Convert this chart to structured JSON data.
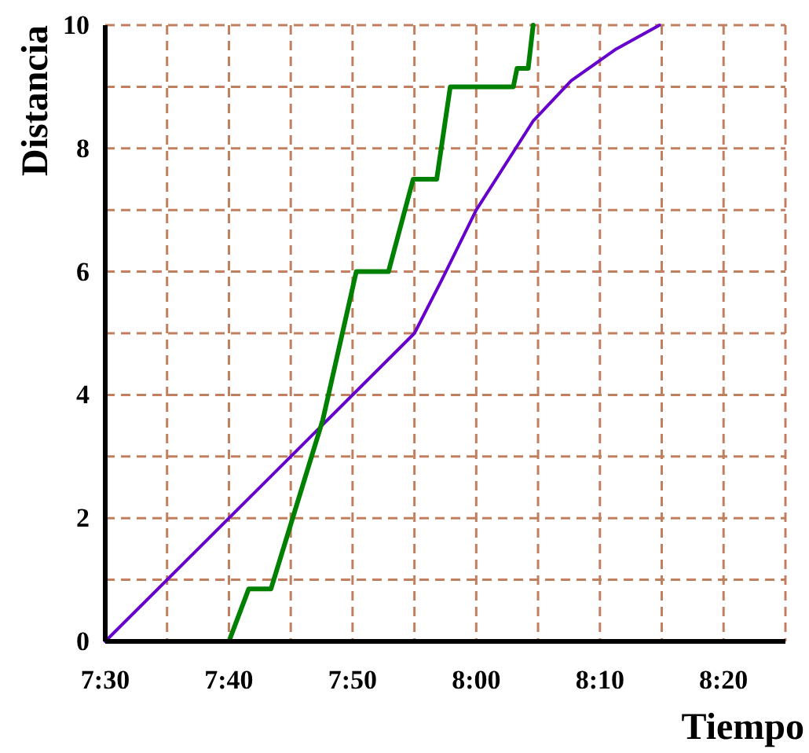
{
  "chart_data": {
    "type": "line",
    "xlabel": "Tiempo",
    "ylabel": "Distancia",
    "xlim": [
      7.5,
      8.4167
    ],
    "xticks": [
      {
        "value": 7.5,
        "label": "7:30"
      },
      {
        "value": 7.5833,
        "label": null
      },
      {
        "value": 7.6667,
        "label": "7:40"
      },
      {
        "value": 7.75,
        "label": null
      },
      {
        "value": 7.8333,
        "label": "7:50"
      },
      {
        "value": 7.9167,
        "label": null
      },
      {
        "value": 8.0,
        "label": "8:00"
      },
      {
        "value": 8.0833,
        "label": null
      },
      {
        "value": 8.1667,
        "label": "8:10"
      },
      {
        "value": 8.25,
        "label": null
      },
      {
        "value": 8.3333,
        "label": "8:20"
      },
      {
        "value": 8.4167,
        "label": null
      }
    ],
    "ylim": [
      0,
      10
    ],
    "yticks": [
      0,
      {
        "value": 1,
        "label": null
      },
      2,
      {
        "value": 3,
        "label": null
      },
      4,
      {
        "value": 5,
        "label": null
      },
      6,
      {
        "value": 7,
        "label": null
      },
      8,
      {
        "value": 9,
        "label": null
      },
      10
    ],
    "grid": true,
    "marker": "none",
    "line_style": "solid",
    "series": [
      {
        "color": "#6600cc",
        "x": [
          7.5,
          7.9167,
          7.955,
          8.0,
          8.077,
          8.128,
          8.187,
          8.247
        ],
        "values": [
          0,
          5,
          5.9,
          7.0,
          8.45,
          9.1,
          9.6,
          10
        ]
      },
      {
        "color": "#008000",
        "x": [
          7.6667,
          7.6933,
          7.7233,
          7.75,
          7.7933,
          7.8383,
          7.8817,
          7.915,
          7.9467,
          7.965,
          8.05,
          8.055,
          8.07,
          8.0767
        ],
        "values": [
          0,
          0.85,
          0.85,
          1.9,
          3.6,
          6,
          6,
          7.5,
          7.5,
          9,
          9,
          9.3,
          9.3,
          10
        ]
      }
    ]
  }
}
